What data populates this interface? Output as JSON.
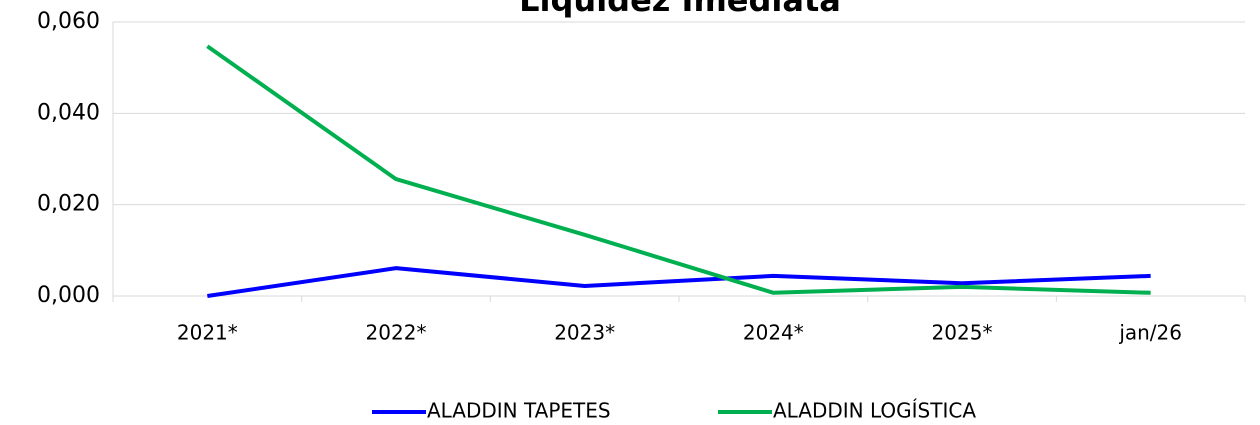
{
  "chart_data": {
    "type": "line",
    "title": "Liquidez Imediata",
    "categories": [
      "2021*",
      "2022*",
      "2023*",
      "2024*",
      "2025*",
      "jan/26"
    ],
    "series": [
      {
        "name": "ALADDIN TAPETES",
        "color": "#0000ff",
        "values": [
          0.0,
          0.0061,
          0.0022,
          0.0044,
          0.0028,
          0.0044
        ]
      },
      {
        "name": "ALADDIN LOGÍSTICA",
        "color": "#00b050",
        "values": [
          0.0547,
          0.0256,
          0.0134,
          0.0007,
          0.002,
          0.0007
        ]
      }
    ],
    "ylim": [
      0,
      0.06
    ],
    "yticks": [
      {
        "value": 0,
        "label": "0,000"
      },
      {
        "value": 0.02,
        "label": "0,020"
      },
      {
        "value": 0.04,
        "label": "0,040"
      },
      {
        "value": 0.06,
        "label": "0,060"
      }
    ],
    "grid": true,
    "legend": "bottom"
  }
}
